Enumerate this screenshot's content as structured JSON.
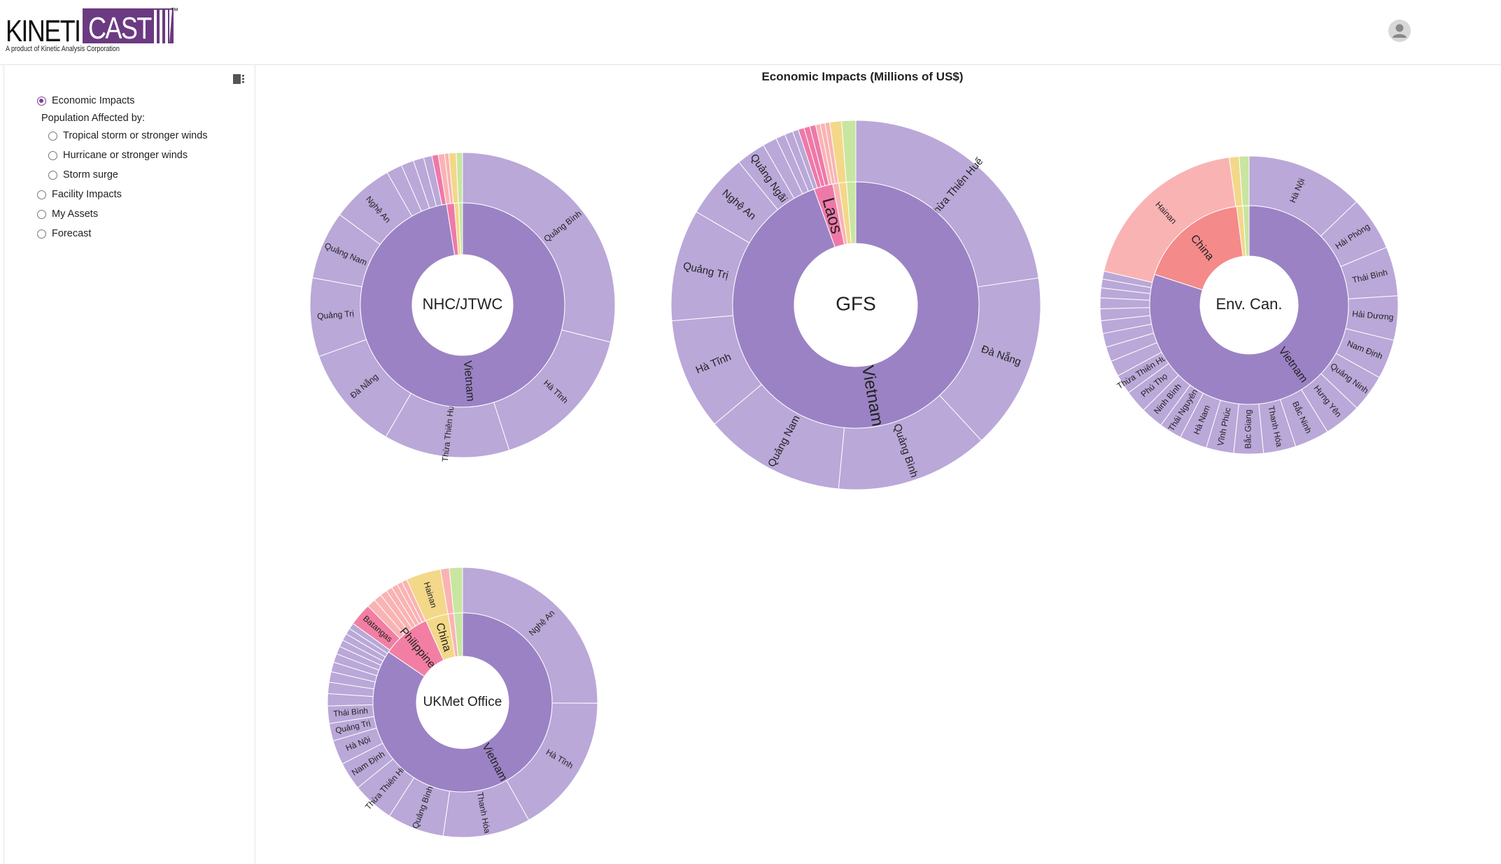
{
  "header": {
    "logo_left": "KINETI",
    "logo_right": "CAST",
    "logo_tm": "™",
    "logo_tagline": "A product of Kinetic Analysis Corporation",
    "avatar_icon": "user-avatar-icon"
  },
  "sidebar": {
    "toggle_icon": "sidebar-toggle-icon",
    "options": [
      {
        "id": "economic",
        "label": "Economic Impacts",
        "selected": true
      },
      {
        "id": "population",
        "label": "Population Affected by:",
        "group": true
      },
      {
        "id": "ts",
        "label": "Tropical storm or stronger winds",
        "selected": false,
        "indent": true
      },
      {
        "id": "hurr",
        "label": "Hurricane or stronger winds",
        "selected": false,
        "indent": true
      },
      {
        "id": "surge",
        "label": "Storm surge",
        "selected": false,
        "indent": true
      },
      {
        "id": "facility",
        "label": "Facility Impacts",
        "selected": false
      },
      {
        "id": "assets",
        "label": "My Assets",
        "selected": false
      },
      {
        "id": "forecast",
        "label": "Forecast",
        "selected": false
      }
    ]
  },
  "main": {
    "title": "Economic Impacts (Millions of US$)"
  },
  "colors": {
    "inner": "#9b82c4",
    "outer": "#baa8d8",
    "china": "#f48a8a",
    "hainan": "#fab3b3",
    "laos": "#ee79a8",
    "philippines": "#f27fa3",
    "green": "#c8e6a0",
    "yellow": "#f3d889"
  },
  "chart_data": [
    {
      "type": "sunburst",
      "center_label": "NHC/JTWC",
      "inner": [
        {
          "name": "Vietnam",
          "value": 97.5,
          "color": "inner",
          "show": true
        },
        {
          "name": "",
          "value": 1.2,
          "color": "laos"
        },
        {
          "name": "",
          "value": 0.7,
          "color": "yellow"
        },
        {
          "name": "",
          "value": 0.6,
          "color": "green"
        }
      ],
      "outer": [
        {
          "name": "Quảng Bình",
          "value": 26
        },
        {
          "name": "Hà Tĩnh",
          "value": 14.5
        },
        {
          "name": "Thừa Thiên Huế",
          "value": 12
        },
        {
          "name": "Đà Nẵng",
          "value": 10
        },
        {
          "name": "Quảng Trị",
          "value": 7.5
        },
        {
          "name": "Quảng Nam",
          "value": 6.5
        },
        {
          "name": "Nghệ An",
          "value": 6
        },
        {
          "name": "",
          "value": 1.5
        },
        {
          "name": "",
          "value": 1.2
        },
        {
          "name": "",
          "value": 1
        },
        {
          "name": "",
          "value": 0.8
        },
        {
          "name": "",
          "value": 0.6,
          "color": "laos"
        },
        {
          "name": "",
          "value": 0.6,
          "color": "hainan"
        },
        {
          "name": "",
          "value": 0.4,
          "color": "hainan"
        },
        {
          "name": "",
          "value": 0.7,
          "color": "yellow"
        },
        {
          "name": "",
          "value": 0.6,
          "color": "green"
        }
      ]
    },
    {
      "type": "sunburst",
      "center_label": "GFS",
      "inner": [
        {
          "name": "Vietnam",
          "value": 94.5,
          "color": "inner",
          "show": true
        },
        {
          "name": "Laos",
          "value": 2.5,
          "color": "laos",
          "show": true
        },
        {
          "name": "",
          "value": 0.8,
          "color": "hainan"
        },
        {
          "name": "",
          "value": 1,
          "color": "yellow"
        },
        {
          "name": "",
          "value": 1.2,
          "color": "green"
        }
      ],
      "outer": [
        {
          "name": "Thừa Thiên Huế",
          "value": 22
        },
        {
          "name": "Đà Nẵng",
          "value": 15
        },
        {
          "name": "Quảng Bình",
          "value": 13
        },
        {
          "name": "Quảng Nam",
          "value": 12
        },
        {
          "name": "Hà Tĩnh",
          "value": 9.5
        },
        {
          "name": "Quảng Trị",
          "value": 9.5
        },
        {
          "name": "Nghệ An",
          "value": 5.5
        },
        {
          "name": "Quảng Ngãi",
          "value": 2.5
        },
        {
          "name": "",
          "value": 1.2
        },
        {
          "name": "",
          "value": 0.8
        },
        {
          "name": "",
          "value": 0.7
        },
        {
          "name": "",
          "value": 0.5
        },
        {
          "name": "",
          "value": 0.5,
          "color": "laos"
        },
        {
          "name": "",
          "value": 0.5,
          "color": "laos"
        },
        {
          "name": "",
          "value": 0.5,
          "color": "laos"
        },
        {
          "name": "",
          "value": 0.4,
          "color": "hainan"
        },
        {
          "name": "",
          "value": 0.4,
          "color": "hainan"
        },
        {
          "name": "",
          "value": 0.4,
          "color": "hainan"
        },
        {
          "name": "",
          "value": 1,
          "color": "yellow"
        },
        {
          "name": "",
          "value": 1.2,
          "color": "green"
        }
      ]
    },
    {
      "type": "sunburst",
      "center_label": "Env. Can.",
      "inner": [
        {
          "name": "Vietnam",
          "value": 80,
          "color": "inner",
          "show": true
        },
        {
          "name": "China",
          "value": 18,
          "color": "china",
          "show": true
        },
        {
          "name": "",
          "value": 1,
          "color": "yellow"
        },
        {
          "name": "",
          "value": 1,
          "color": "green"
        }
      ],
      "outer": [
        {
          "name": "Hà Nội",
          "value": 12
        },
        {
          "name": "Hải Phòng",
          "value": 5.5
        },
        {
          "name": "Thái Bình",
          "value": 5
        },
        {
          "name": "Hải Dương",
          "value": 4.5
        },
        {
          "name": "Nam Định",
          "value": 4
        },
        {
          "name": "Quảng Ninh",
          "value": 3.8
        },
        {
          "name": "Hưng Yên",
          "value": 3.8
        },
        {
          "name": "Bắc Ninh",
          "value": 3.5
        },
        {
          "name": "Thanh Hóa",
          "value": 3.3
        },
        {
          "name": "Bắc Giang",
          "value": 3
        },
        {
          "name": "Vĩnh Phúc",
          "value": 2.8
        },
        {
          "name": "Hà Nam",
          "value": 2.8
        },
        {
          "name": "Thái Nguyên",
          "value": 2.3
        },
        {
          "name": "Ninh Bình",
          "value": 2.3
        },
        {
          "name": "Phú Thọ",
          "value": 2.3
        },
        {
          "name": "Thừa Thiên Huế",
          "value": 2
        },
        {
          "name": "",
          "value": 1.6
        },
        {
          "name": "",
          "value": 1.5
        },
        {
          "name": "",
          "value": 1.4
        },
        {
          "name": "",
          "value": 1.3
        },
        {
          "name": "",
          "value": 1.2
        },
        {
          "name": "",
          "value": 1.1
        },
        {
          "name": "",
          "value": 1
        },
        {
          "name": "",
          "value": 0.9
        },
        {
          "name": "",
          "value": 0.8
        },
        {
          "name": "Hainan",
          "value": 18,
          "color": "hainan"
        },
        {
          "name": "",
          "value": 1,
          "color": "yellow"
        },
        {
          "name": "",
          "value": 1,
          "color": "green"
        }
      ]
    },
    {
      "type": "sunburst",
      "center_label": "UKMet Office",
      "inner": [
        {
          "name": "Vietnam",
          "value": 82,
          "color": "inner",
          "show": true
        },
        {
          "name": "Philippines",
          "value": 8.5,
          "color": "philippines",
          "show": true
        },
        {
          "name": "China",
          "value": 4,
          "color": "yellow",
          "show": true
        },
        {
          "name": "",
          "value": 1,
          "color": "hainan"
        },
        {
          "name": "",
          "value": 1.5,
          "color": "green"
        }
      ],
      "outer": [
        {
          "name": "Nghệ An",
          "value": 24
        },
        {
          "name": "Hà Tĩnh",
          "value": 16
        },
        {
          "name": "Thanh Hóa",
          "value": 10
        },
        {
          "name": "Quảng Bình",
          "value": 6.5
        },
        {
          "name": "Thừa Thiên Huế",
          "value": 4.8
        },
        {
          "name": "Nam Định",
          "value": 3.2
        },
        {
          "name": "Hà Nội",
          "value": 2.8
        },
        {
          "name": "Quảng Trị",
          "value": 2
        },
        {
          "name": "Thái Bình",
          "value": 2
        },
        {
          "name": "",
          "value": 1.4
        },
        {
          "name": "",
          "value": 1.3
        },
        {
          "name": "",
          "value": 1.2
        },
        {
          "name": "",
          "value": 1.1
        },
        {
          "name": "",
          "value": 1
        },
        {
          "name": "",
          "value": 0.9
        },
        {
          "name": "",
          "value": 0.8
        },
        {
          "name": "",
          "value": 0.8
        },
        {
          "name": "",
          "value": 0.7
        },
        {
          "name": "",
          "value": 0.7
        },
        {
          "name": "Batangas",
          "value": 2.6,
          "color": "philippines"
        },
        {
          "name": "",
          "value": 1,
          "color": "hainan"
        },
        {
          "name": "",
          "value": 0.9,
          "color": "hainan"
        },
        {
          "name": "",
          "value": 0.8,
          "color": "hainan"
        },
        {
          "name": "",
          "value": 0.7,
          "color": "hainan"
        },
        {
          "name": "",
          "value": 0.7,
          "color": "hainan"
        },
        {
          "name": "",
          "value": 0.6,
          "color": "hainan"
        },
        {
          "name": "",
          "value": 0.6,
          "color": "hainan"
        },
        {
          "name": "Hainan",
          "value": 4,
          "color": "yellow"
        },
        {
          "name": "",
          "value": 1,
          "color": "hainan"
        },
        {
          "name": "",
          "value": 1.5,
          "color": "green"
        }
      ]
    }
  ]
}
